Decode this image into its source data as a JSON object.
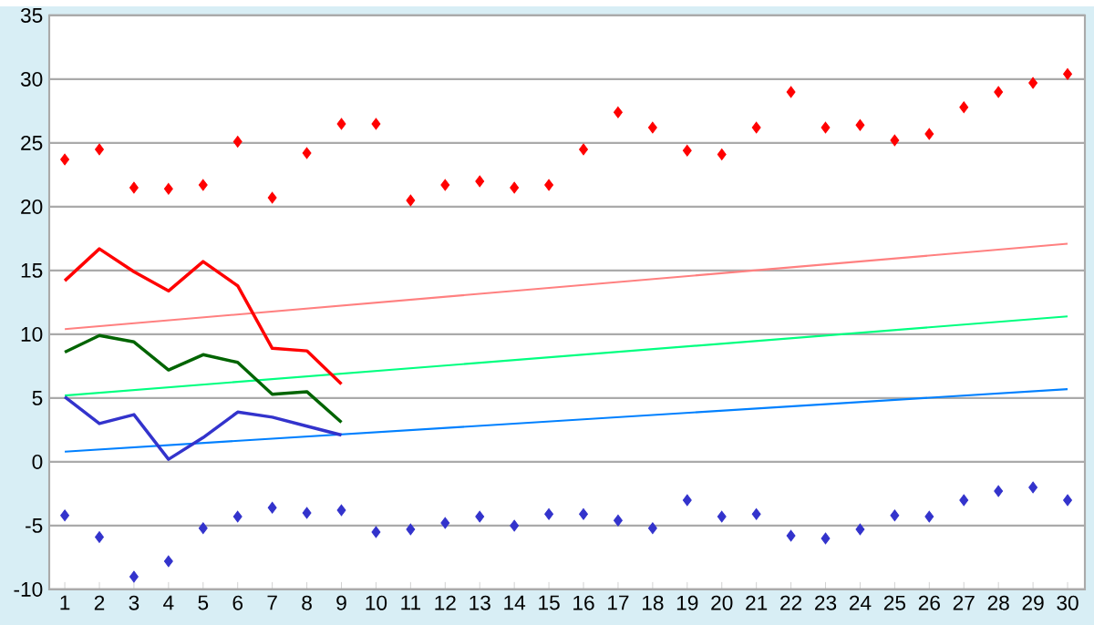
{
  "chart_data": {
    "type": "line",
    "x": [
      1,
      2,
      3,
      4,
      5,
      6,
      7,
      8,
      9,
      10,
      11,
      12,
      13,
      14,
      15,
      16,
      17,
      18,
      19,
      20,
      21,
      22,
      23,
      24,
      25,
      26,
      27,
      28,
      29,
      30
    ],
    "xlim": [
      0.55,
      30.5
    ],
    "xticks": [
      1,
      2,
      3,
      4,
      5,
      6,
      7,
      8,
      9,
      10,
      11,
      12,
      13,
      14,
      15,
      16,
      17,
      18,
      19,
      20,
      21,
      22,
      23,
      24,
      25,
      26,
      27,
      28,
      29,
      30
    ],
    "ylim": [
      -10,
      35
    ],
    "yticks": [
      -10,
      -5,
      0,
      5,
      10,
      15,
      20,
      25,
      30,
      35
    ],
    "grid": "y",
    "series": [
      {
        "type": "scatter",
        "marker": "diamond",
        "color": "#ff0000",
        "values": [
          23.7,
          24.5,
          21.5,
          21.4,
          21.7,
          25.1,
          20.7,
          24.2,
          26.5,
          26.5,
          20.5,
          21.7,
          22.0,
          21.5,
          21.7,
          24.5,
          27.4,
          26.2,
          24.4,
          24.1,
          26.2,
          29.0,
          26.2,
          26.4,
          25.2,
          25.7,
          27.8,
          29.0,
          29.7,
          30.4
        ]
      },
      {
        "type": "scatter",
        "marker": "diamond",
        "color": "#3333cc",
        "values": [
          -4.2,
          -5.9,
          -9.0,
          -7.8,
          -5.2,
          -4.3,
          -3.6,
          -4.0,
          -3.8,
          -5.5,
          -5.3,
          -4.8,
          -4.3,
          -5.0,
          -4.1,
          -4.1,
          -4.6,
          -5.2,
          -3.0,
          -4.3,
          -4.1,
          -5.8,
          -6.0,
          -5.3,
          -4.2,
          -4.3,
          -3.0,
          -2.3,
          -2.0,
          -3.0
        ]
      },
      {
        "color": "#ff8080",
        "x": [
          1,
          30
        ],
        "values": [
          10.4,
          17.1
        ]
      },
      {
        "color": "#00ff80",
        "x": [
          1,
          30
        ],
        "values": [
          5.2,
          11.4
        ]
      },
      {
        "color": "#0080ff",
        "x": [
          1,
          30
        ],
        "values": [
          0.8,
          5.7
        ]
      },
      {
        "color": "#ff0000",
        "x": [
          1,
          2,
          3,
          4,
          5,
          6,
          7,
          8,
          9
        ],
        "values": [
          14.2,
          16.7,
          14.9,
          13.4,
          15.7,
          13.8,
          8.9,
          8.7,
          6.1
        ]
      },
      {
        "color": "#006400",
        "x": [
          1,
          2,
          3,
          4,
          5,
          6,
          7,
          8,
          9
        ],
        "values": [
          8.6,
          9.9,
          9.4,
          7.2,
          8.4,
          7.8,
          5.3,
          5.5,
          3.1
        ]
      },
      {
        "color": "#3333cc",
        "x": [
          1,
          2,
          3,
          4,
          5,
          6,
          7,
          8,
          9
        ],
        "values": [
          5.1,
          3.0,
          3.7,
          0.2,
          1.9,
          3.9,
          3.5,
          2.8,
          2.1
        ]
      }
    ]
  }
}
